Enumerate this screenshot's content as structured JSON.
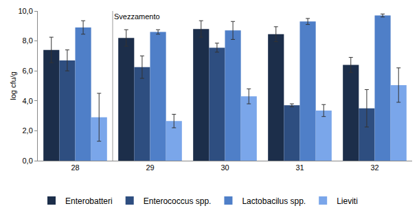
{
  "chart_data": {
    "type": "bar",
    "categories": [
      "28",
      "29",
      "30",
      "31",
      "32"
    ],
    "y_label": "log cfu/g",
    "ylim": [
      0,
      10
    ],
    "yticks": [
      {
        "value": 0,
        "label": "0,0"
      },
      {
        "value": 2,
        "label": "2,0"
      },
      {
        "value": 4,
        "label": "4,0"
      },
      {
        "value": 6,
        "label": "6,0"
      },
      {
        "value": 8,
        "label": "8,0"
      },
      {
        "value": 10,
        "label": "10,0"
      }
    ],
    "grid": false,
    "legend": "bottom",
    "annotations": [
      {
        "text": "Svezzamento"
      }
    ],
    "series": [
      {
        "name": "Enterobatteri",
        "color": "#1c2e4a",
        "values": [
          7.4,
          8.2,
          8.8,
          8.45,
          6.4
        ],
        "errors": [
          0.85,
          0.55,
          0.55,
          0.5,
          0.5
        ]
      },
      {
        "name": "Enterococcus spp.",
        "color": "#2e4e80",
        "values": [
          6.7,
          6.25,
          7.55,
          3.7,
          3.5
        ],
        "errors": [
          0.7,
          0.75,
          0.3,
          0.1,
          1.25
        ]
      },
      {
        "name": "Lactobacilus spp.",
        "color": "#4f7fc8",
        "values": [
          8.9,
          8.6,
          8.7,
          9.3,
          9.7
        ],
        "errors": [
          0.45,
          0.15,
          0.6,
          0.2,
          0.1
        ]
      },
      {
        "name": "Lieviti",
        "color": "#7aa6ea",
        "values": [
          2.9,
          2.65,
          4.3,
          3.35,
          5.05
        ],
        "errors": [
          1.6,
          0.45,
          0.5,
          0.4,
          1.15
        ]
      }
    ]
  }
}
